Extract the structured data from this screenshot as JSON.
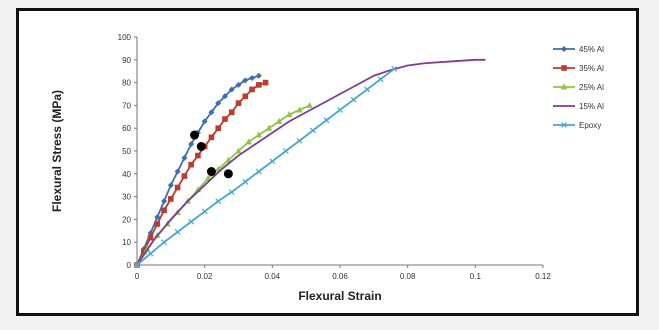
{
  "chart_data": {
    "type": "line",
    "title": "",
    "xlabel": "Flexural  Strain",
    "ylabel": "Flexural Stress (MPa)",
    "xlim": [
      0,
      0.12
    ],
    "ylim": [
      0,
      100
    ],
    "xticks": [
      0,
      0.02,
      0.04,
      0.06,
      0.08,
      0.1,
      0.12
    ],
    "xtick_labels": [
      "0",
      "0.02",
      "0.04",
      "0.06",
      "0.08",
      "0.1",
      "0.12"
    ],
    "yticks": [
      0,
      10,
      20,
      30,
      40,
      50,
      60,
      70,
      80,
      90,
      100
    ],
    "ytick_labels": [
      "0",
      "10",
      "20",
      "30",
      "40",
      "50",
      "60",
      "70",
      "80",
      "90",
      "100"
    ],
    "grid": false,
    "legend_position": "right",
    "series": [
      {
        "name": "45% Al",
        "color": "#3a6fb5",
        "marker": "diamond",
        "x": [
          0,
          0.002,
          0.004,
          0.006,
          0.008,
          0.01,
          0.012,
          0.014,
          0.016,
          0.018,
          0.02,
          0.022,
          0.024,
          0.026,
          0.028,
          0.03,
          0.032,
          0.034,
          0.036
        ],
        "y": [
          0,
          7,
          14,
          21,
          28,
          35,
          41,
          47,
          53,
          58,
          63,
          67,
          71,
          74,
          77,
          79,
          81,
          82,
          83
        ]
      },
      {
        "name": "35% Al",
        "color": "#c0392b",
        "marker": "square",
        "x": [
          0,
          0.002,
          0.004,
          0.006,
          0.008,
          0.01,
          0.012,
          0.014,
          0.016,
          0.018,
          0.02,
          0.022,
          0.024,
          0.026,
          0.028,
          0.03,
          0.032,
          0.034,
          0.036,
          0.038
        ],
        "y": [
          0,
          6,
          12,
          18,
          24,
          29,
          34,
          39,
          44,
          48,
          52,
          56,
          60,
          64,
          67,
          71,
          74,
          77,
          79,
          80
        ]
      },
      {
        "name": "25% Al",
        "color": "#8dc63f",
        "marker": "triangle",
        "x": [
          0,
          0.003,
          0.006,
          0.009,
          0.012,
          0.015,
          0.018,
          0.021,
          0.024,
          0.027,
          0.03,
          0.033,
          0.036,
          0.039,
          0.042,
          0.045,
          0.048,
          0.051
        ],
        "y": [
          0,
          7,
          13,
          18,
          23,
          28,
          33,
          38,
          42,
          46,
          50,
          54,
          57,
          60,
          63,
          66,
          68,
          70
        ]
      },
      {
        "name": "15% Al",
        "color": "#7d3c98",
        "marker": "none",
        "x": [
          0,
          0.005,
          0.01,
          0.015,
          0.02,
          0.025,
          0.03,
          0.035,
          0.04,
          0.045,
          0.05,
          0.055,
          0.06,
          0.065,
          0.07,
          0.075,
          0.08,
          0.085,
          0.09,
          0.095,
          0.1,
          0.103
        ],
        "y": [
          0,
          11,
          20,
          28,
          35,
          42,
          48,
          53,
          58,
          63,
          67,
          71,
          75,
          79,
          83,
          85.5,
          87.5,
          88.5,
          89,
          89.5,
          90,
          90
        ]
      },
      {
        "name": "Epoxy",
        "color": "#3fa8d6",
        "marker": "x",
        "x": [
          0,
          0.004,
          0.008,
          0.012,
          0.016,
          0.02,
          0.024,
          0.028,
          0.032,
          0.036,
          0.04,
          0.044,
          0.048,
          0.052,
          0.056,
          0.06,
          0.064,
          0.068,
          0.072,
          0.076
        ],
        "y": [
          0,
          5,
          10,
          14.5,
          19,
          23.5,
          28,
          32,
          36.5,
          41,
          45.5,
          50,
          54.5,
          59,
          63.5,
          68,
          72.5,
          77,
          81.5,
          86
        ]
      }
    ],
    "annotations": [
      {
        "type": "dot",
        "x": 0.017,
        "y": 57
      },
      {
        "type": "dot",
        "x": 0.019,
        "y": 52
      },
      {
        "type": "dot",
        "x": 0.022,
        "y": 41
      },
      {
        "type": "dot",
        "x": 0.027,
        "y": 40
      }
    ]
  }
}
